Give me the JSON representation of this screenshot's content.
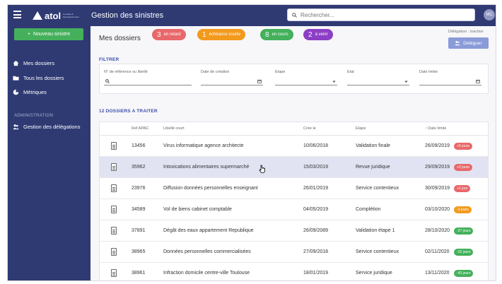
{
  "brand": {
    "logo_text": "atol",
    "logo_tagline": "Conseils & Développements"
  },
  "header": {
    "title": "Gestion des sinistres",
    "search_placeholder": "Rechercher...",
    "avatar_initials": "MC"
  },
  "sidebar": {
    "new_button": "Nouveau sinistre",
    "items": [
      {
        "label": "Mes dossiers",
        "icon": "home-icon"
      },
      {
        "label": "Tous les dossiers",
        "icon": "folder-icon"
      },
      {
        "label": "Métriques",
        "icon": "pie-chart-icon"
      }
    ],
    "admin_section": "ADMINISTRATION",
    "admin_item": "Gestion des délégations"
  },
  "main": {
    "title": "Mes dossiers",
    "pills": [
      {
        "count": "3",
        "label": "en retard",
        "color": "#e8686a"
      },
      {
        "count": "1",
        "label": "échéance courte",
        "color": "#f39a1d"
      },
      {
        "count": "8",
        "label": "en cours",
        "color": "#44b05b"
      },
      {
        "count": "2",
        "label": "à venir",
        "color": "#8c3fc4"
      }
    ],
    "delegation_status": "Délégation : inactive",
    "delegate_button": "Déléguer",
    "filter_title": "FILTRER",
    "filters": {
      "ref": "N° de référence ou libellé",
      "created": "Date de création",
      "step": "Etape",
      "state": "Etat",
      "deadline": "Date limite"
    },
    "list_title": "12 DOSSIERS A TRAITER",
    "columns": [
      "Ref APAC",
      "Libellé court",
      "Crée le",
      "Etape",
      "↑ Date limite"
    ],
    "rows": [
      {
        "ref": "13456",
        "label": "Virus informatique agence architecte",
        "created": "10/06/2018",
        "step": "Validation finale",
        "deadline": "26/09/2019",
        "badge": "+5 jours",
        "badge_color": "#e8686a"
      },
      {
        "ref": "35962",
        "label": "Intoxications alimentaires supermarché",
        "created": "15/03/2019",
        "step": "Revue juridique",
        "deadline": "29/09/2019",
        "badge": "+2 jours",
        "badge_color": "#e8686a"
      },
      {
        "ref": "23976",
        "label": "Diffusion données personnelles enseignant",
        "created": "26/01/2019",
        "step": "Service contentieux",
        "deadline": "30/09/2019",
        "badge": "+1 jour",
        "badge_color": "#e8686a"
      },
      {
        "ref": "34589",
        "label": "Vol de biens cabinet comptable",
        "created": "04/05/2019",
        "step": "Complétion",
        "deadline": "03/10/2020",
        "badge": "-3 jours",
        "badge_color": "#f39a1d"
      },
      {
        "ref": "37891",
        "label": "Dégât des eaux appartement Republique",
        "created": "26/09/2089",
        "step": "Validation étape 1",
        "deadline": "28/10/2020",
        "badge": "-27 jours",
        "badge_color": "#44b05b"
      },
      {
        "ref": "38965",
        "label": "Données personnelles commercialisées",
        "created": "27/09/2018",
        "step": "Service contentieux",
        "deadline": "02/11/2020",
        "badge": "-32 jours",
        "badge_color": "#44b05b"
      },
      {
        "ref": "38961",
        "label": "Infraction domicile centre-ville Toulouse",
        "created": "18/01/2019",
        "step": "Service juridique",
        "deadline": "13/11/2020",
        "badge": "-43 jours",
        "badge_color": "#44b05b"
      }
    ]
  }
}
